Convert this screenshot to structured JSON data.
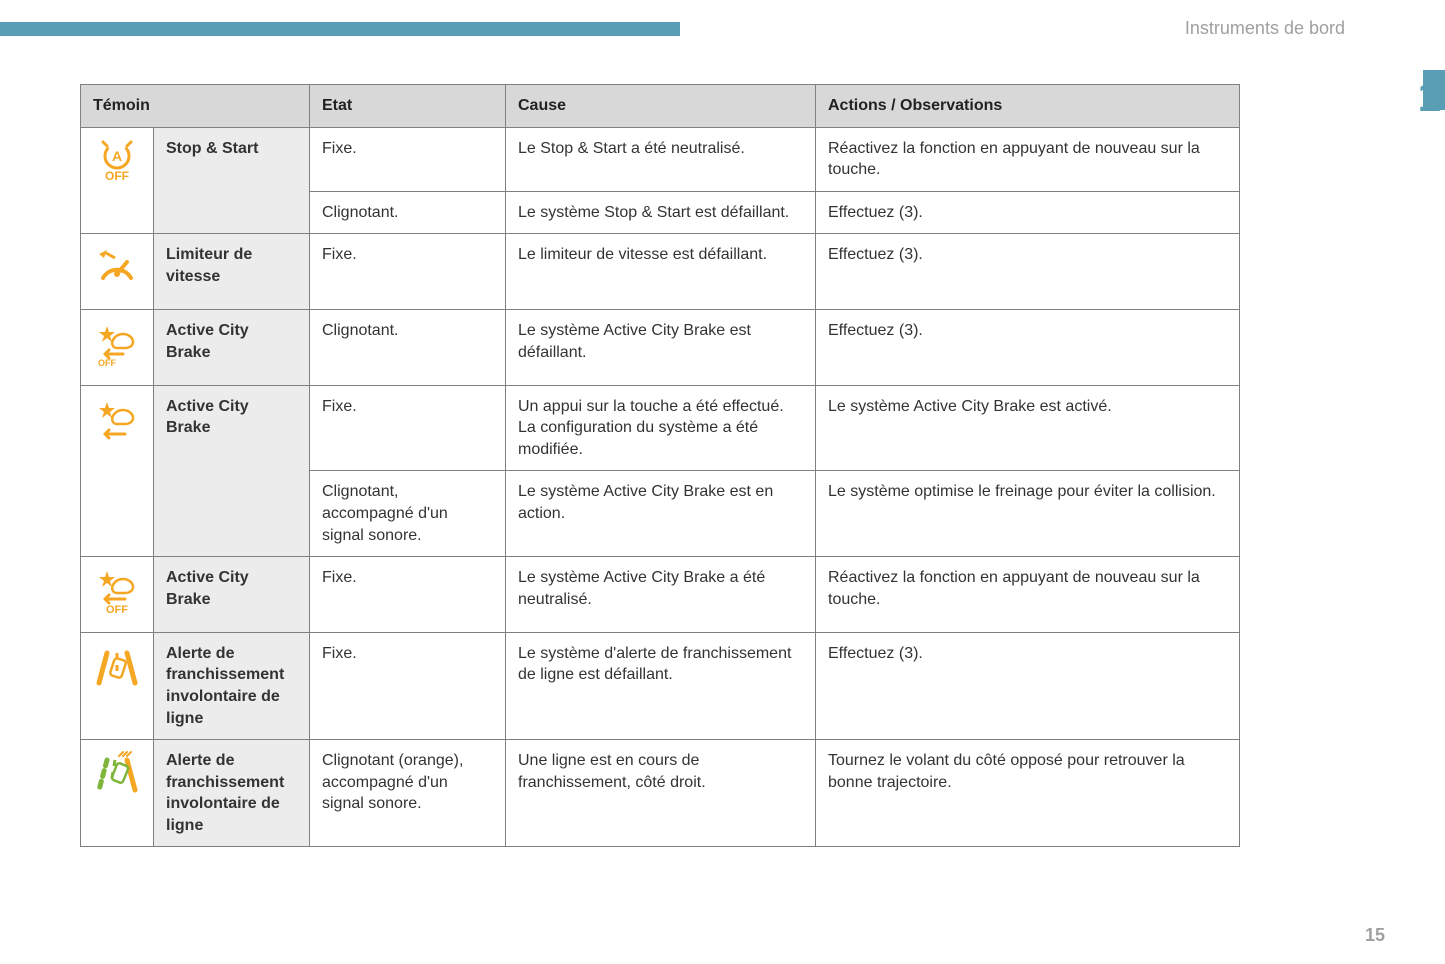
{
  "page": {
    "section_label": "Instruments de bord",
    "tab_number": "1",
    "page_number": "15",
    "accent_color": "#5a9eb5",
    "icon_color": "#f5a623",
    "icon_color_green": "#7fb53b"
  },
  "table": {
    "headers": {
      "indicator": "Témoin",
      "state": "Etat",
      "cause": "Cause",
      "actions": "Actions / Observations"
    },
    "groups": [
      {
        "icon": "stop-start-off",
        "label": "Stop & Start",
        "rows": [
          {
            "state": "Fixe.",
            "cause": "Le Stop & Start a été neutralisé.",
            "actions": "Réactivez la fonction en appuyant de nouveau sur la touche."
          },
          {
            "state": "Clignotant.",
            "cause": "Le système Stop & Start est défaillant.",
            "actions": "Effectuez (3)."
          }
        ]
      },
      {
        "icon": "speed-limiter",
        "label": "Limiteur de vitesse",
        "rows": [
          {
            "state": "Fixe.",
            "cause": "Le limiteur de vitesse est défaillant.",
            "actions": "Effectuez (3)."
          }
        ]
      },
      {
        "icon": "acb-off-star",
        "label": "Active City Brake",
        "rows": [
          {
            "state": "Clignotant.",
            "cause": "Le système Active City Brake est défaillant.",
            "actions": "Effectuez (3)."
          }
        ]
      },
      {
        "icon": "acb-star",
        "label": "Active City Brake",
        "rows": [
          {
            "state": "Fixe.",
            "cause": "Un appui sur la touche a été effectué.\nLa configuration du système a été modifiée.",
            "actions": "Le système Active City Brake est activé."
          },
          {
            "state": "Clignotant, accompagné d'un signal sonore.",
            "cause": "Le système Active City Brake est en action.",
            "actions": "Le système optimise le freinage pour éviter la collision."
          }
        ]
      },
      {
        "icon": "acb-off",
        "label": "Active City Brake",
        "rows": [
          {
            "state": "Fixe.",
            "cause": "Le système Active City Brake a été neutralisé.",
            "actions": "Réactivez la fonction en appuyant de nouveau sur la touche."
          }
        ]
      },
      {
        "icon": "lane-departure",
        "label": "Alerte de franchissement involontaire de ligne",
        "rows": [
          {
            "state": "Fixe.",
            "cause": "Le système d'alerte de franchissement de ligne est défaillant.",
            "actions": "Effectuez (3)."
          }
        ]
      },
      {
        "icon": "lane-departure-right",
        "label": "Alerte de franchissement involontaire de ligne",
        "rows": [
          {
            "state": "Clignotant (orange), accompagné d'un signal sonore.",
            "cause": "Une ligne est en cours de franchissement, côté droit.",
            "actions": "Tournez le volant du côté opposé pour retrouver la bonne trajectoire."
          }
        ]
      }
    ]
  }
}
